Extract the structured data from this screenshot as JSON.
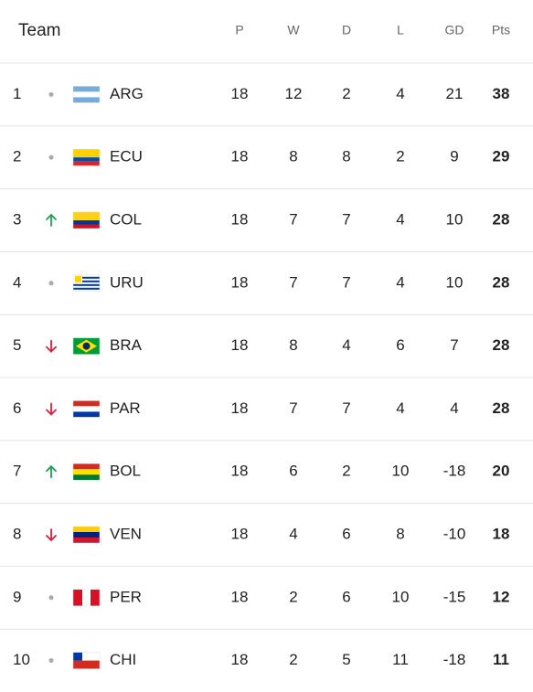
{
  "header": {
    "team": "Team",
    "columns": [
      "P",
      "W",
      "D",
      "L",
      "GD",
      "Pts"
    ]
  },
  "rows": [
    {
      "rank": 1,
      "team": "ARG",
      "stats": [
        18,
        12,
        2,
        4,
        21,
        38
      ]
    },
    {
      "rank": 2,
      "team": "ECU",
      "stats": [
        18,
        8,
        8,
        2,
        9,
        29
      ]
    },
    {
      "rank": 3,
      "team": "COL",
      "stats": [
        18,
        7,
        7,
        4,
        10,
        28
      ]
    },
    {
      "rank": 4,
      "team": "URU",
      "stats": [
        18,
        7,
        7,
        4,
        10,
        28
      ]
    },
    {
      "rank": 5,
      "team": "BRA",
      "stats": [
        18,
        8,
        4,
        6,
        7,
        28
      ]
    },
    {
      "rank": 6,
      "team": "PAR",
      "stats": [
        18,
        7,
        7,
        4,
        4,
        28
      ]
    },
    {
      "rank": 7,
      "team": "BOL",
      "stats": [
        18,
        6,
        2,
        10,
        -18,
        20
      ]
    },
    {
      "rank": 8,
      "team": "VEN",
      "stats": [
        18,
        4,
        6,
        8,
        -10,
        18
      ]
    },
    {
      "rank": 9,
      "team": "PER",
      "stats": [
        18,
        2,
        6,
        10,
        -15,
        12
      ]
    },
    {
      "rank": 10,
      "team": "CHI",
      "stats": [
        18,
        2,
        5,
        11,
        -18,
        11
      ]
    }
  ]
}
